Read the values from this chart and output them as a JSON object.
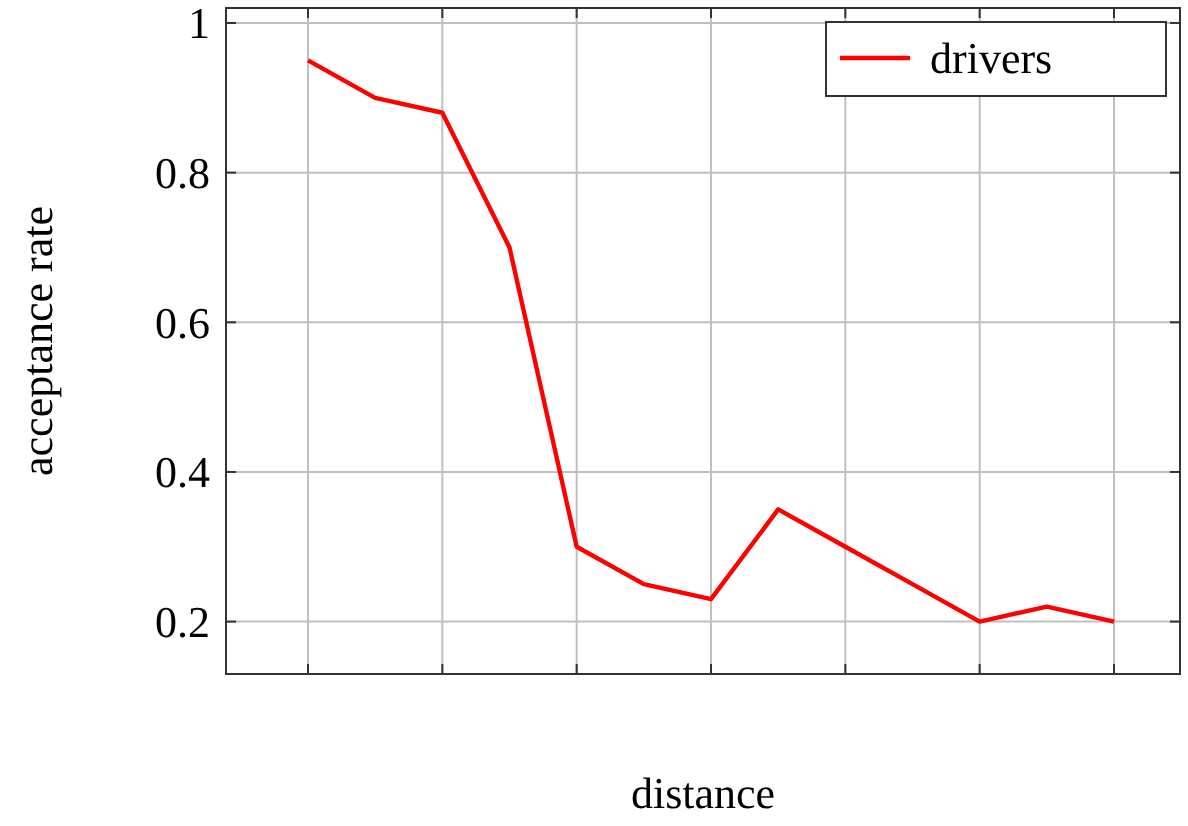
{
  "chart_data": {
    "type": "line",
    "xlabel": "distance",
    "ylabel": "acceptance rate",
    "categories": [
      null,
      null,
      null,
      null,
      null,
      null,
      null,
      null,
      null,
      null,
      null,
      null,
      null
    ],
    "series": [
      {
        "name": "drivers",
        "color": "#ff0000",
        "values": [
          0.95,
          0.9,
          0.88,
          0.7,
          0.3,
          0.25,
          0.23,
          0.35,
          0.3,
          0.25,
          0.2,
          0.22,
          0.2
        ]
      }
    ],
    "ylim": [
      0.13,
      1.02
    ],
    "yticks": [
      {
        "value": 0.2,
        "label": "0.2"
      },
      {
        "value": 0.4,
        "label": "0.4"
      },
      {
        "value": 0.6,
        "label": "0.6"
      },
      {
        "value": 0.8,
        "label": "0.8"
      },
      {
        "value": 1,
        "label": "1"
      }
    ],
    "grid": true,
    "legend": "top right",
    "marker": "none",
    "line_style": "solid"
  }
}
